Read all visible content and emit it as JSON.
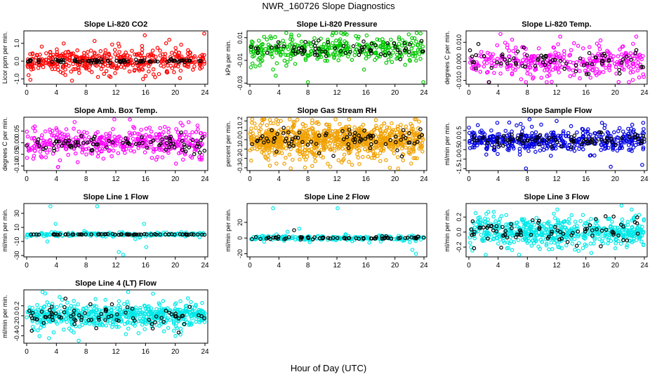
{
  "page": {
    "title": "NWR_160726  Slope Diagnostics",
    "xlabel": "Hour of Day (UTC)"
  },
  "chart_data": [
    {
      "type": "scatter",
      "title": "Slope Li-820 CO2",
      "ylabel": "Licor ppm per min.",
      "xlim": [
        0,
        24
      ],
      "xticks": [
        0,
        4,
        8,
        12,
        16,
        20,
        24
      ],
      "ylim": [
        -1.3,
        1.7
      ],
      "yticks": [
        "-1.0",
        "0.0",
        "1.0"
      ],
      "ytick_values": [
        -1.0,
        0.0,
        1.0
      ],
      "grid": false,
      "series": [
        {
          "color": "#ff0000",
          "spread": 0.35,
          "count": 420,
          "x": [
            0.5,
            6.1,
            15.9,
            17.3,
            23.9,
            19.2
          ],
          "y": [
            -1.05,
            -1.1,
            1.45,
            -0.9,
            1.55,
            1.2
          ]
        },
        {
          "color": "#000000",
          "spread": 0.05,
          "count": 80,
          "x": [],
          "y": []
        }
      ]
    },
    {
      "type": "scatter",
      "title": "Slope Li-820 Pressure",
      "ylabel": "kPa per min.",
      "xlim": [
        0,
        24
      ],
      "xticks": [
        0,
        4,
        8,
        12,
        16,
        20,
        24
      ],
      "ylim": [
        -0.031,
        0.016
      ],
      "yticks": [
        "-0.03",
        "-0.01",
        "0.01"
      ],
      "ytick_values": [
        -0.03,
        -0.01,
        0.01
      ],
      "grid": false,
      "series": [
        {
          "color": "#00c800",
          "spread": 0.006,
          "count": 360,
          "x": [
            8.0,
            23.9,
            21.9,
            16.1,
            3.2
          ],
          "y": [
            -0.03,
            -0.03,
            0.013,
            0.012,
            -0.018
          ]
        },
        {
          "color": "#000000",
          "spread": 0.003,
          "count": 70,
          "x": [],
          "y": []
        }
      ]
    },
    {
      "type": "scatter",
      "title": "Slope Li-820 Temp.",
      "ylabel": "degrees C per min.",
      "xlim": [
        0,
        24
      ],
      "xticks": [
        0,
        4,
        8,
        12,
        16,
        20,
        24
      ],
      "ylim": [
        -0.012,
        0.016
      ],
      "yticks": [
        "-0.010",
        "0.000",
        "0.010"
      ],
      "ytick_values": [
        -0.01,
        0.0,
        0.01
      ],
      "grid": false,
      "series": [
        {
          "color": "#ff00ff",
          "spread": 0.004,
          "count": 330,
          "x": [
            7.8,
            22.9,
            18.0,
            12.2
          ],
          "y": [
            -0.011,
            0.013,
            0.011,
            0.009
          ]
        },
        {
          "color": "#000000",
          "spread": 0.003,
          "count": 70,
          "x": [],
          "y": []
        }
      ]
    },
    {
      "type": "scatter",
      "title": "Slope Amb. Box Temp.",
      "ylabel": "degrees C per min.",
      "xlim": [
        0,
        24
      ],
      "xticks": [
        0,
        4,
        8,
        12,
        16,
        20,
        24
      ],
      "ylim": [
        -0.12,
        0.11
      ],
      "yticks": [
        "-0.10",
        "-0.05",
        "0.00",
        "0.05"
      ],
      "ytick_values": [
        -0.1,
        -0.05,
        0.0,
        0.05
      ],
      "grid": false,
      "series": [
        {
          "color": "#ff00ff",
          "spread": 0.03,
          "count": 420,
          "x": [
            13.9,
            4.2,
            20.1
          ],
          "y": [
            0.1,
            -0.105,
            -0.09
          ]
        },
        {
          "color": "#000000",
          "spread": 0.02,
          "count": 80,
          "x": [],
          "y": []
        }
      ]
    },
    {
      "type": "scatter",
      "title": "Slope Gas Stream RH",
      "ylabel": "percent per min.",
      "xlim": [
        0,
        24
      ],
      "xticks": [
        0,
        4,
        8,
        12,
        16,
        20,
        24
      ],
      "ylim": [
        -0.33,
        0.24
      ],
      "yticks": [
        "-0.3",
        "-0.2",
        "-0.1",
        "0.0",
        "0.1",
        "0.2"
      ],
      "ytick_values": [
        -0.3,
        -0.2,
        -0.1,
        0.0,
        0.1,
        0.2
      ],
      "grid": false,
      "series": [
        {
          "color": "#f0a000",
          "spread": 0.09,
          "count": 900,
          "x": [
            19.3,
            2.0,
            15.1
          ],
          "y": [
            -0.3,
            0.22,
            -0.26
          ]
        },
        {
          "color": "#000000",
          "spread": 0.07,
          "count": 80,
          "x": [],
          "y": []
        }
      ]
    },
    {
      "type": "scatter",
      "title": "Slope Sample Flow",
      "ylabel": "ml/min per min.",
      "xlim": [
        0,
        24
      ],
      "xticks": [
        0,
        4,
        8,
        12,
        16,
        20,
        24
      ],
      "ylim": [
        -1.6,
        1.2
      ],
      "yticks": [
        "-1.5",
        "-1.0",
        "-0.5",
        "0.0",
        "0.5"
      ],
      "ytick_values": [
        -1.5,
        -1.0,
        -0.5,
        0.0,
        0.5
      ],
      "grid": false,
      "series": [
        {
          "color": "#0000e0",
          "spread": 0.3,
          "count": 460,
          "x": [
            7.8,
            12.0,
            19.4,
            23.7,
            18.2
          ],
          "y": [
            -1.5,
            1.0,
            -1.4,
            -1.3,
            0.9
          ]
        },
        {
          "color": "#000000",
          "spread": 0.15,
          "count": 80,
          "x": [],
          "y": []
        }
      ]
    },
    {
      "type": "scatter",
      "title": "Slope Line 1 Flow",
      "ylabel": "ml/min per min.",
      "xlim": [
        0,
        24
      ],
      "xticks": [
        0,
        4,
        8,
        12,
        16,
        20,
        24
      ],
      "ylim": [
        -32,
        44
      ],
      "yticks": [
        "-30",
        "-10",
        "10",
        "30"
      ],
      "ytick_values": [
        -30,
        -10,
        10,
        30
      ],
      "grid": false,
      "series": [
        {
          "color": "#00e8e8",
          "spread": 1.5,
          "count": 200,
          "x": [
            3.2,
            9.5,
            12.4,
            13.0,
            16.1,
            3.9,
            15.8,
            2.8
          ],
          "y": [
            40,
            40,
            -25,
            -30,
            -18,
            15,
            15,
            -10
          ]
        },
        {
          "color": "#000000",
          "spread": 0.3,
          "count": 70,
          "x": [],
          "y": []
        }
      ]
    },
    {
      "type": "scatter",
      "title": "Slope Line 2 Flow",
      "ylabel": "ml/min per min.",
      "xlim": [
        0,
        24
      ],
      "xticks": [
        0,
        4,
        8,
        12,
        16,
        20,
        24
      ],
      "ylim": [
        -24,
        44
      ],
      "yticks": [
        "-20",
        "0",
        "20"
      ],
      "ytick_values": [
        -20,
        0,
        20
      ],
      "grid": false,
      "series": [
        {
          "color": "#00e8e8",
          "spread": 1.8,
          "count": 200,
          "x": [
            3.2,
            12.1,
            22.9,
            22.4,
            6.8,
            5.2
          ],
          "y": [
            38,
            38,
            -20,
            -15,
            12,
            8
          ]
        },
        {
          "color": "#000000",
          "spread": 0.8,
          "count": 70,
          "x": [
            6.1
          ],
          "y": [
            10
          ]
        }
      ]
    },
    {
      "type": "scatter",
      "title": "Slope Line 3 Flow",
      "ylabel": "ml/min per min.",
      "xlim": [
        0,
        24
      ],
      "xticks": [
        0,
        4,
        8,
        12,
        16,
        20,
        24
      ],
      "ylim": [
        -0.33,
        0.38
      ],
      "yticks": [
        "-0.2",
        "0.0",
        "0.2"
      ],
      "ytick_values": [
        -0.2,
        0.0,
        0.2
      ],
      "grid": false,
      "series": [
        {
          "color": "#00e8e8",
          "spread": 0.1,
          "count": 560,
          "x": [
            12.1,
            15.0,
            3.4
          ],
          "y": [
            0.3,
            -0.25,
            0.27
          ]
        },
        {
          "color": "#000000",
          "spread": 0.09,
          "count": 80,
          "x": [],
          "y": []
        }
      ]
    },
    {
      "type": "scatter",
      "title": "Slope Line 4 (LT) Flow",
      "ylabel": "ml/min per min.",
      "xlim": [
        0,
        24
      ],
      "xticks": [
        0,
        4,
        8,
        12,
        16,
        20,
        24
      ],
      "ylim": [
        -0.55,
        0.52
      ],
      "yticks": [
        "-0.4",
        "-0.2",
        "0.0",
        "0.2"
      ],
      "ytick_values": [
        -0.4,
        -0.2,
        0.0,
        0.2
      ],
      "grid": false,
      "series": [
        {
          "color": "#00e8e8",
          "spread": 0.12,
          "count": 620,
          "x": [
            3.0,
            7.0,
            2.5,
            21.7
          ],
          "y": [
            -0.45,
            -0.5,
            0.45,
            0.35
          ]
        },
        {
          "color": "#000000",
          "spread": 0.1,
          "count": 80,
          "x": [],
          "y": []
        }
      ]
    }
  ]
}
